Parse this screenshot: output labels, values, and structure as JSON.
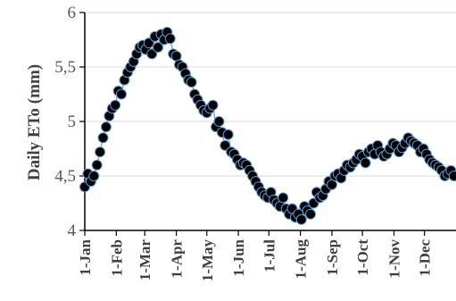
{
  "chart_data": {
    "type": "scatter",
    "title": "",
    "ylabel": "Daily ETo (mm)",
    "xlabel": "",
    "ylim": [
      4,
      6
    ],
    "y_ticks": [
      4,
      4.5,
      5,
      5.5,
      6
    ],
    "y_tick_labels": [
      "4",
      "4,5",
      "5",
      "5,5",
      "6"
    ],
    "x_ticks": [
      1,
      32,
      60,
      91,
      121,
      152,
      182,
      213,
      244,
      274,
      305,
      335
    ],
    "x_tick_labels": [
      "1-Jan",
      "1-Feb",
      "1-Mar",
      "1-Apr",
      "1-May",
      "1-Jun",
      "1-Jul",
      "1-Aug",
      "1-Sep",
      "1-Oct",
      "1-Nov",
      "1-Dec"
    ],
    "x_unit": "day of year",
    "grid": "horizontal",
    "marker_color": "#000000",
    "marker_edge_color": "#5b9bd5",
    "line_color": "#5b9bd5",
    "series": [
      {
        "x": [
          1,
          4,
          7,
          10,
          13,
          16,
          19,
          22,
          25,
          28,
          31,
          34,
          37,
          40,
          43,
          46,
          49,
          52,
          55,
          58,
          61,
          64,
          67,
          70,
          73,
          76,
          79,
          82,
          85,
          88,
          91,
          94,
          97,
          100,
          103,
          106,
          109,
          112,
          115,
          118,
          121,
          124,
          127,
          130,
          133,
          136,
          139,
          142,
          145,
          148,
          151,
          154,
          157,
          160,
          163,
          166,
          169,
          172,
          175,
          178,
          181,
          184,
          187,
          190,
          193,
          196,
          199,
          202,
          205,
          208,
          211,
          214,
          217,
          220,
          223,
          226,
          229,
          232,
          235,
          238,
          241,
          244,
          247,
          250,
          253,
          256,
          259,
          262,
          265,
          268,
          271,
          274,
          277,
          280,
          283,
          286,
          289,
          292,
          295,
          298,
          301,
          304,
          307,
          310,
          313,
          316,
          319,
          322,
          325,
          328,
          331,
          334,
          337,
          340,
          343,
          346,
          349,
          352,
          355,
          358,
          361,
          364
        ],
        "y": [
          4.4,
          4.52,
          4.45,
          4.5,
          4.6,
          4.72,
          4.85,
          4.95,
          5.05,
          5.12,
          5.15,
          5.28,
          5.25,
          5.38,
          5.45,
          5.5,
          5.55,
          5.62,
          5.68,
          5.7,
          5.66,
          5.72,
          5.62,
          5.78,
          5.68,
          5.8,
          5.75,
          5.82,
          5.76,
          5.62,
          5.6,
          5.52,
          5.5,
          5.44,
          5.38,
          5.36,
          5.25,
          5.2,
          5.15,
          5.1,
          5.08,
          5.12,
          5.15,
          4.95,
          5.0,
          4.9,
          4.78,
          4.88,
          4.72,
          4.7,
          4.65,
          4.6,
          4.62,
          4.6,
          4.55,
          4.5,
          4.45,
          4.4,
          4.35,
          4.32,
          4.3,
          4.35,
          4.28,
          4.25,
          4.22,
          4.3,
          4.2,
          4.15,
          4.2,
          4.12,
          4.15,
          4.1,
          4.22,
          4.18,
          4.15,
          4.25,
          4.35,
          4.3,
          4.32,
          4.38,
          4.45,
          4.42,
          4.5,
          4.52,
          4.48,
          4.55,
          4.6,
          4.58,
          4.62,
          4.65,
          4.7,
          4.68,
          4.62,
          4.72,
          4.75,
          4.7,
          4.78,
          4.72,
          4.68,
          4.7,
          4.75,
          4.8,
          4.78,
          4.72,
          4.76,
          4.8,
          4.85,
          4.82,
          4.8,
          4.78,
          4.72,
          4.75,
          4.7,
          4.65,
          4.62,
          4.6,
          4.58,
          4.55,
          4.5,
          4.52,
          4.55,
          4.5
        ]
      }
    ]
  }
}
